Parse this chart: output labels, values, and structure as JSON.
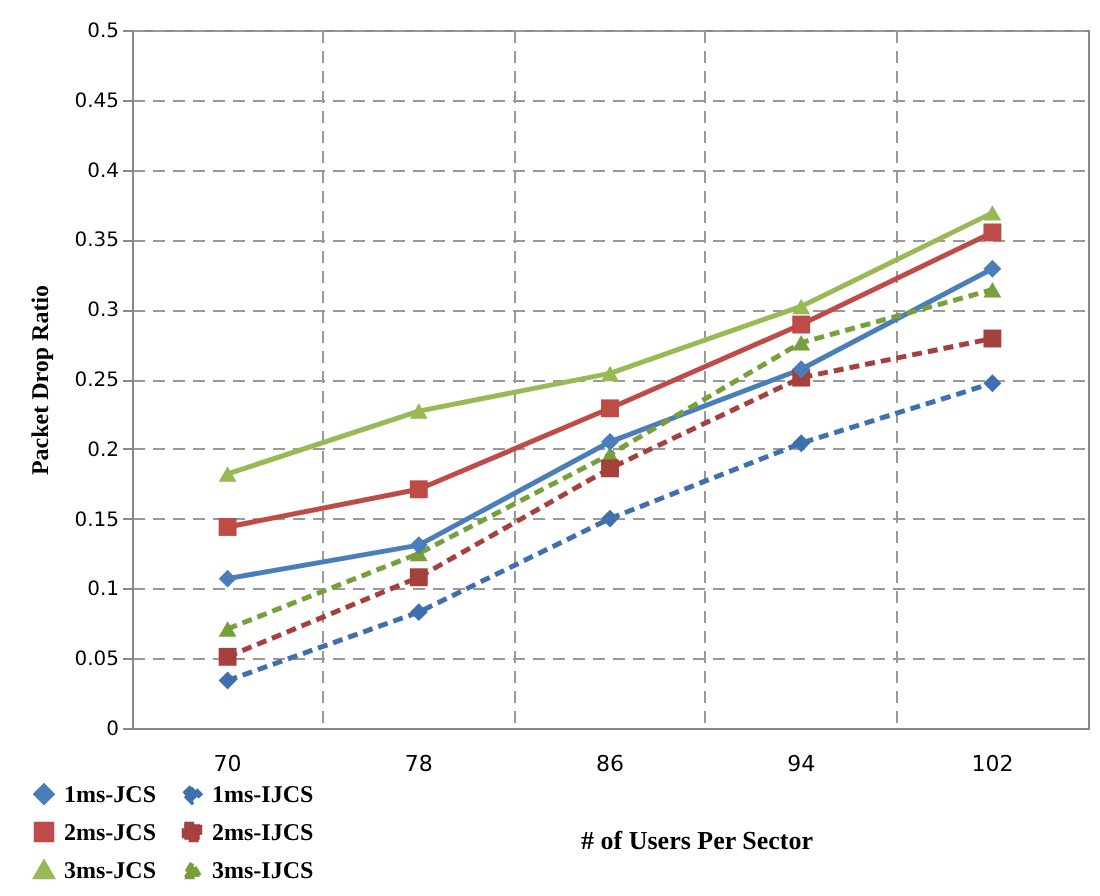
{
  "chart_data": {
    "type": "line",
    "ylabel": "Packet Drop Ratio",
    "xlabel": "# of Users  Per Sector",
    "categories": [
      "70",
      "78",
      "86",
      "94",
      "102"
    ],
    "series": [
      {
        "name": "1ms-JCS",
        "color": "#4a7ebb",
        "marker": "diamond",
        "line_style": "solid",
        "values": [
          0.107,
          0.131,
          0.205,
          0.257,
          0.329
        ]
      },
      {
        "name": "2ms-JCS",
        "color": "#be4b48",
        "marker": "square",
        "line_style": "solid",
        "values": [
          0.144,
          0.171,
          0.229,
          0.289,
          0.355
        ]
      },
      {
        "name": "3ms-JCS",
        "color": "#98b954",
        "marker": "triangle",
        "line_style": "solid",
        "values": [
          0.182,
          0.227,
          0.254,
          0.302,
          0.369
        ]
      },
      {
        "name": "1ms-IJCS",
        "color": "#3e6faf",
        "marker": "diamond",
        "line_style": "dashed",
        "values": [
          0.034,
          0.083,
          0.15,
          0.204,
          0.247
        ]
      },
      {
        "name": "2ms-IJCS",
        "color": "#a6403d",
        "marker": "square",
        "line_style": "dashed",
        "values": [
          0.051,
          0.108,
          0.186,
          0.251,
          0.279
        ]
      },
      {
        "name": "3ms-IJCS",
        "color": "#77a03a",
        "marker": "triangle",
        "line_style": "dashed",
        "values": [
          0.071,
          0.125,
          0.196,
          0.276,
          0.314
        ]
      }
    ],
    "ylim": [
      0,
      0.5
    ],
    "yticks": [
      0,
      0.05,
      0.1,
      0.15,
      0.2,
      0.25,
      0.3,
      0.35,
      0.4,
      0.45,
      0.5
    ],
    "grid": true,
    "legend": "bottom left"
  }
}
